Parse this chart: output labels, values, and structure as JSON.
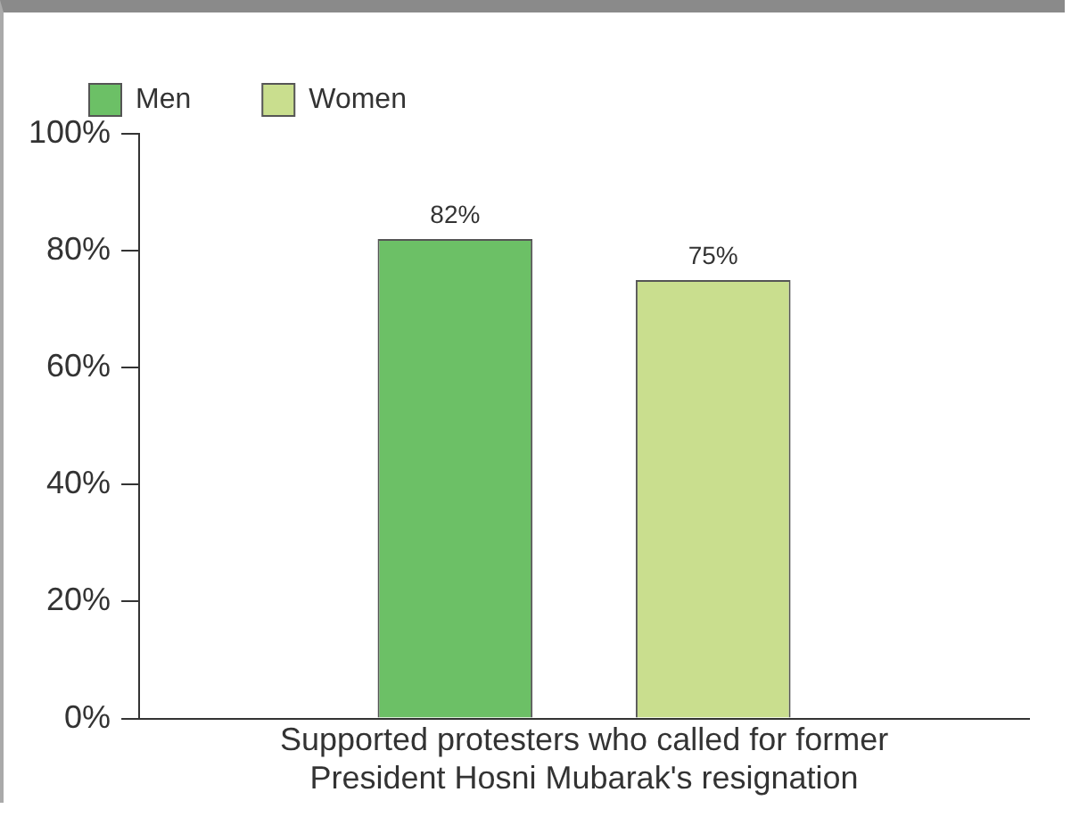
{
  "chart_data": {
    "type": "bar",
    "categories": [
      "Supported protesters who called for former President Hosni Mubarak's resignation"
    ],
    "series": [
      {
        "name": "Men",
        "color": "#6cc066",
        "values": [
          82
        ],
        "value_labels": [
          "82%"
        ]
      },
      {
        "name": "Women",
        "color": "#c9de8e",
        "values": [
          75
        ],
        "value_labels": [
          "75%"
        ]
      }
    ],
    "ylim": [
      0,
      100
    ],
    "yticks": [
      {
        "value": 0,
        "label": "0%"
      },
      {
        "value": 20,
        "label": "20%"
      },
      {
        "value": 40,
        "label": "40%"
      },
      {
        "value": 60,
        "label": "60%"
      },
      {
        "value": 80,
        "label": "80%"
      },
      {
        "value": 100,
        "label": "100%"
      }
    ],
    "grid": false,
    "legend": "top left"
  }
}
